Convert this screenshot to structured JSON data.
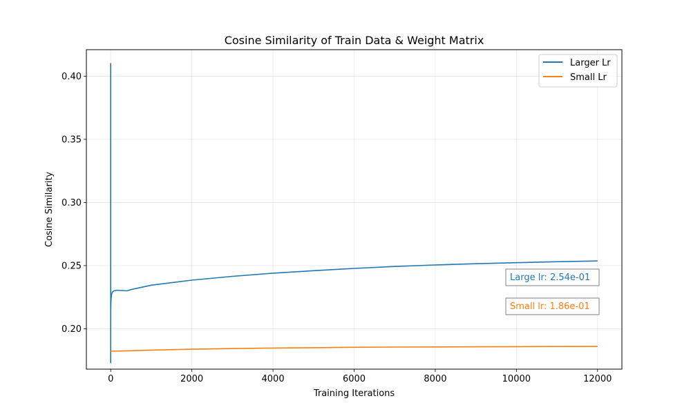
{
  "chart_data": {
    "type": "line",
    "title": "Cosine Similarity of Train Data & Weight Matrix",
    "xlabel": "Training Iterations",
    "ylabel": "Cosine Similarity",
    "xlim": [
      -600,
      12600
    ],
    "ylim": [
      0.168,
      0.421
    ],
    "xticks": [
      0,
      2000,
      4000,
      6000,
      8000,
      10000,
      12000
    ],
    "xtick_labels": [
      "0",
      "2000",
      "4000",
      "6000",
      "8000",
      "10000",
      "12000"
    ],
    "yticks": [
      0.2,
      0.25,
      0.3,
      0.35,
      0.4
    ],
    "ytick_labels": [
      "0.20",
      "0.25",
      "0.30",
      "0.35",
      "0.40"
    ],
    "grid": true,
    "legend_position": "top-right",
    "series": [
      {
        "name": "Larger Lr",
        "color": "#1f77b4",
        "x": [
          0,
          0,
          0,
          0,
          0,
          0,
          0,
          0,
          0,
          2,
          5,
          10,
          20,
          40,
          80,
          150,
          250,
          400,
          500,
          1000,
          2000,
          3000,
          4000,
          5000,
          6000,
          7000,
          8000,
          9000,
          10000,
          11000,
          12000
        ],
        "y": [
          0.345,
          0.325,
          0.348,
          0.335,
          0.41,
          0.173,
          0.215,
          0.19,
          0.205,
          0.215,
          0.22,
          0.224,
          0.227,
          0.229,
          0.23,
          0.2305,
          0.2303,
          0.23,
          0.231,
          0.2345,
          0.2385,
          0.2415,
          0.244,
          0.246,
          0.2478,
          0.2493,
          0.2505,
          0.2515,
          0.2523,
          0.2531,
          0.2537
        ]
      },
      {
        "name": "Small Lr",
        "color": "#ff7f0e",
        "x": [
          0,
          500,
          1000,
          2000,
          3000,
          4000,
          5000,
          6000,
          7000,
          8000,
          9000,
          10000,
          11000,
          12000
        ],
        "y": [
          0.1822,
          0.1826,
          0.1831,
          0.1838,
          0.1843,
          0.1847,
          0.185,
          0.1853,
          0.1855,
          0.1856,
          0.1857,
          0.1858,
          0.1859,
          0.186
        ]
      }
    ],
    "annotations": [
      {
        "text": "Large lr: 2.54e-01",
        "color": "#1f77b4"
      },
      {
        "text": "Small lr: 1.86e-01",
        "color": "#ff7f0e"
      }
    ]
  }
}
